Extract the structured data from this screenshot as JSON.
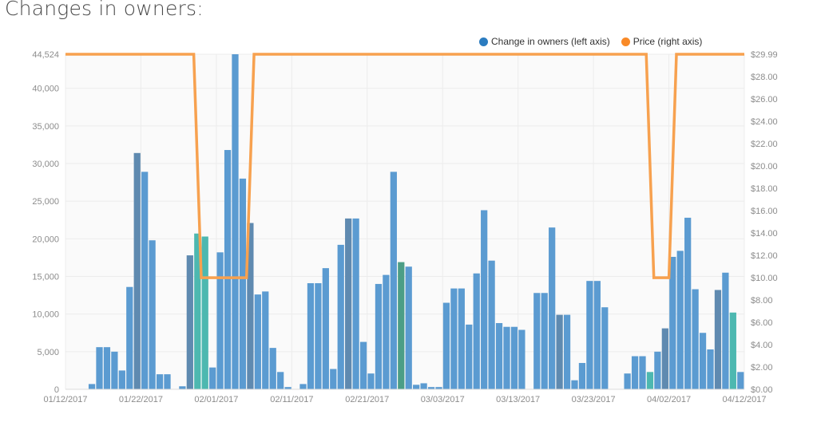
{
  "title": "Changes in owners:",
  "legend": {
    "owners_label": "Change in owners (left axis)",
    "price_label": "Price (right axis)"
  },
  "colors": {
    "bar": "#5b9bd1",
    "bar_dark": "#5f8ab0",
    "bar_teal": "#4db8b0",
    "bar_green": "#4c9e86",
    "price_line": "#f7a14f",
    "legend_owners": "#2b7cc0",
    "legend_price": "#f98a28",
    "grid": "#ececec",
    "plot_bg": "#fafafa"
  },
  "chart_data": {
    "type": "bar",
    "x_axis": {
      "type": "date",
      "range": [
        "01/12/2017",
        "04/12/2017"
      ],
      "tick_labels": [
        "01/12/2017",
        "01/22/2017",
        "02/01/2017",
        "02/11/2017",
        "02/21/2017",
        "03/03/2017",
        "03/13/2017",
        "03/23/2017",
        "04/02/2017",
        "04/12/2017"
      ]
    },
    "y_axis_left": {
      "label": "Change in owners",
      "range": [
        0,
        44524
      ],
      "tick_values": [
        0,
        5000,
        10000,
        15000,
        20000,
        25000,
        30000,
        35000,
        40000,
        44524
      ],
      "tick_labels": [
        "0",
        "5,000",
        "10,000",
        "15,000",
        "20,000",
        "25,000",
        "30,000",
        "35,000",
        "40,000",
        "44,524"
      ]
    },
    "y_axis_right": {
      "label": "Price",
      "range": [
        0,
        29.99
      ],
      "tick_values": [
        0,
        2,
        4,
        6,
        8,
        10,
        12,
        14,
        16,
        18,
        20,
        22,
        24,
        26,
        28,
        29.99
      ],
      "tick_labels": [
        "$0.00",
        "$2.00",
        "$4.00",
        "$6.00",
        "$8.00",
        "$10.00",
        "$12.00",
        "$14.00",
        "$16.00",
        "$18.00",
        "$20.00",
        "$22.00",
        "$24.00",
        "$26.00",
        "$28.00",
        "$29.99"
      ]
    },
    "grid": true,
    "legend_position": "top-right",
    "series": [
      {
        "name": "Change in owners (left axis)",
        "type": "bar",
        "axis": "left",
        "points": [
          {
            "x": "01/12/2017",
            "y": 0
          },
          {
            "x": "01/13/2017",
            "y": 0
          },
          {
            "x": "01/14/2017",
            "y": 0
          },
          {
            "x": "01/15/2017",
            "y": 700
          },
          {
            "x": "01/16/2017",
            "y": 5600
          },
          {
            "x": "01/17/2017",
            "y": 5600
          },
          {
            "x": "01/18/2017",
            "y": 5000
          },
          {
            "x": "01/19/2017",
            "y": 2500
          },
          {
            "x": "01/20/2017",
            "y": 13600
          },
          {
            "x": "01/21/2017",
            "y": 31400,
            "tone": "dark"
          },
          {
            "x": "01/22/2017",
            "y": 28900
          },
          {
            "x": "01/23/2017",
            "y": 19800
          },
          {
            "x": "01/24/2017",
            "y": 2000
          },
          {
            "x": "01/25/2017",
            "y": 2000
          },
          {
            "x": "01/26/2017",
            "y": 0
          },
          {
            "x": "01/27/2017",
            "y": 400
          },
          {
            "x": "01/28/2017",
            "y": 17800,
            "tone": "dark"
          },
          {
            "x": "01/29/2017",
            "y": 20700,
            "tone": "teal"
          },
          {
            "x": "01/30/2017",
            "y": 20300,
            "tone": "teal"
          },
          {
            "x": "01/31/2017",
            "y": 2900
          },
          {
            "x": "02/01/2017",
            "y": 18200
          },
          {
            "x": "02/02/2017",
            "y": 31800
          },
          {
            "x": "02/03/2017",
            "y": 44524
          },
          {
            "x": "02/04/2017",
            "y": 28000
          },
          {
            "x": "02/05/2017",
            "y": 22100,
            "tone": "dark"
          },
          {
            "x": "02/06/2017",
            "y": 12600
          },
          {
            "x": "02/07/2017",
            "y": 13000
          },
          {
            "x": "02/08/2017",
            "y": 5500
          },
          {
            "x": "02/09/2017",
            "y": 2300
          },
          {
            "x": "02/10/2017",
            "y": 300
          },
          {
            "x": "02/11/2017",
            "y": 0
          },
          {
            "x": "02/12/2017",
            "y": 700
          },
          {
            "x": "02/13/2017",
            "y": 14100
          },
          {
            "x": "02/14/2017",
            "y": 14100
          },
          {
            "x": "02/15/2017",
            "y": 16100
          },
          {
            "x": "02/16/2017",
            "y": 2700
          },
          {
            "x": "02/17/2017",
            "y": 19200
          },
          {
            "x": "02/18/2017",
            "y": 22700,
            "tone": "dark"
          },
          {
            "x": "02/19/2017",
            "y": 22700
          },
          {
            "x": "02/20/2017",
            "y": 6300
          },
          {
            "x": "02/21/2017",
            "y": 2100
          },
          {
            "x": "02/22/2017",
            "y": 14000
          },
          {
            "x": "02/23/2017",
            "y": 15200
          },
          {
            "x": "02/24/2017",
            "y": 28900
          },
          {
            "x": "02/25/2017",
            "y": 16900,
            "tone": "green"
          },
          {
            "x": "02/26/2017",
            "y": 16300
          },
          {
            "x": "02/27/2017",
            "y": 600
          },
          {
            "x": "02/28/2017",
            "y": 800
          },
          {
            "x": "03/01/2017",
            "y": 300
          },
          {
            "x": "03/02/2017",
            "y": 300
          },
          {
            "x": "03/03/2017",
            "y": 11500
          },
          {
            "x": "03/04/2017",
            "y": 13400
          },
          {
            "x": "03/05/2017",
            "y": 13400
          },
          {
            "x": "03/06/2017",
            "y": 8600
          },
          {
            "x": "03/07/2017",
            "y": 15400
          },
          {
            "x": "03/08/2017",
            "y": 23800
          },
          {
            "x": "03/09/2017",
            "y": 17100
          },
          {
            "x": "03/10/2017",
            "y": 8800
          },
          {
            "x": "03/11/2017",
            "y": 8300
          },
          {
            "x": "03/12/2017",
            "y": 8300
          },
          {
            "x": "03/13/2017",
            "y": 7900
          },
          {
            "x": "03/14/2017",
            "y": 0
          },
          {
            "x": "03/15/2017",
            "y": 12800
          },
          {
            "x": "03/16/2017",
            "y": 12800
          },
          {
            "x": "03/17/2017",
            "y": 21500
          },
          {
            "x": "03/18/2017",
            "y": 9900,
            "tone": "dark"
          },
          {
            "x": "03/19/2017",
            "y": 9900
          },
          {
            "x": "03/20/2017",
            "y": 1200
          },
          {
            "x": "03/21/2017",
            "y": 3500
          },
          {
            "x": "03/22/2017",
            "y": 14400
          },
          {
            "x": "03/23/2017",
            "y": 14400
          },
          {
            "x": "03/24/2017",
            "y": 10900
          },
          {
            "x": "03/25/2017",
            "y": 0
          },
          {
            "x": "03/26/2017",
            "y": 0
          },
          {
            "x": "03/27/2017",
            "y": 2100
          },
          {
            "x": "03/28/2017",
            "y": 4400
          },
          {
            "x": "03/29/2017",
            "y": 4400
          },
          {
            "x": "03/30/2017",
            "y": 2300,
            "tone": "teal"
          },
          {
            "x": "03/31/2017",
            "y": 5000
          },
          {
            "x": "04/01/2017",
            "y": 8100,
            "tone": "dark"
          },
          {
            "x": "04/02/2017",
            "y": 17600
          },
          {
            "x": "04/03/2017",
            "y": 18400
          },
          {
            "x": "04/04/2017",
            "y": 22800
          },
          {
            "x": "04/05/2017",
            "y": 13300
          },
          {
            "x": "04/06/2017",
            "y": 7500
          },
          {
            "x": "04/07/2017",
            "y": 5300
          },
          {
            "x": "04/08/2017",
            "y": 13200,
            "tone": "dark"
          },
          {
            "x": "04/09/2017",
            "y": 15500
          },
          {
            "x": "04/10/2017",
            "y": 10200,
            "tone": "teal"
          },
          {
            "x": "04/11/2017",
            "y": 2300
          }
        ]
      },
      {
        "name": "Price (right axis)",
        "type": "line",
        "axis": "right",
        "points": [
          {
            "x": "01/12/2017",
            "y": 29.99
          },
          {
            "x": "01/29/2017",
            "y": 29.99
          },
          {
            "x": "01/30/2017",
            "y": 9.99
          },
          {
            "x": "02/05/2017",
            "y": 9.99
          },
          {
            "x": "02/06/2017",
            "y": 29.99
          },
          {
            "x": "03/30/2017",
            "y": 29.99
          },
          {
            "x": "03/31/2017",
            "y": 9.99
          },
          {
            "x": "04/02/2017",
            "y": 9.99
          },
          {
            "x": "04/03/2017",
            "y": 29.99
          },
          {
            "x": "04/12/2017",
            "y": 29.99
          }
        ]
      }
    ]
  }
}
